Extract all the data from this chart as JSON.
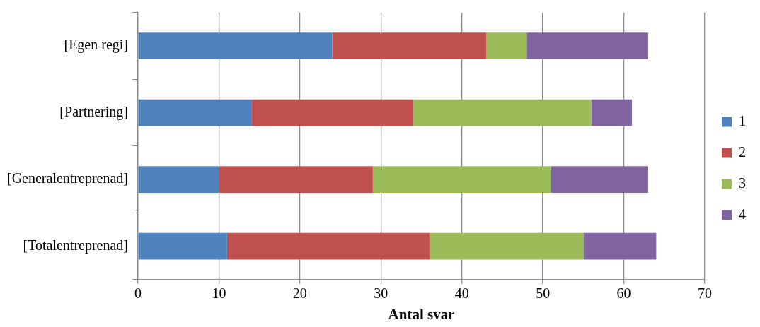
{
  "chart_data": {
    "type": "bar",
    "orientation": "horizontal",
    "stacked": true,
    "categories": [
      "[Egen regi]",
      "[Partnering]",
      "[Generalentreprenad]",
      "[Totalentreprenad]"
    ],
    "series": [
      {
        "name": "1",
        "color": "#4f81bd",
        "values": [
          24,
          14,
          10,
          11
        ]
      },
      {
        "name": "2",
        "color": "#c0504d",
        "values": [
          19,
          20,
          19,
          25
        ]
      },
      {
        "name": "3",
        "color": "#9bbb59",
        "values": [
          5,
          22,
          22,
          19
        ]
      },
      {
        "name": "4",
        "color": "#8064a2",
        "values": [
          15,
          5,
          12,
          9
        ]
      }
    ],
    "xlabel": "Antal svar",
    "xlim": [
      0,
      70
    ],
    "xticks": [
      0,
      10,
      20,
      30,
      40,
      50,
      60,
      70
    ],
    "grid": "x",
    "legend": "right"
  }
}
